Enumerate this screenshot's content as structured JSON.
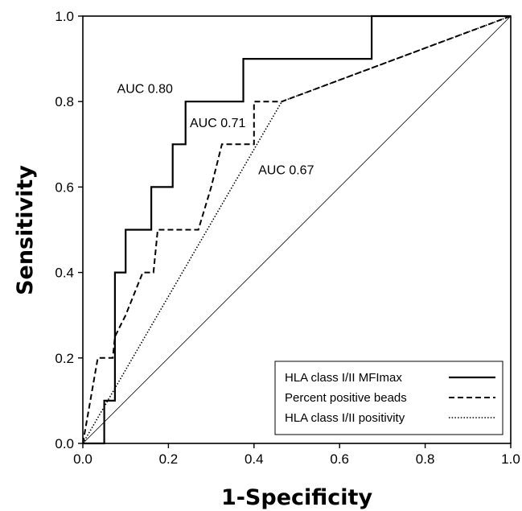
{
  "chart_data": {
    "type": "line",
    "xlabel": "1-Specificity",
    "ylabel": "Sensitivity",
    "xlim": [
      0,
      1
    ],
    "ylim": [
      0,
      1
    ],
    "grid": false,
    "legend_position": "bottom-right",
    "x_ticks": [
      "0.0",
      "0.2",
      "0.4",
      "0.6",
      "0.8",
      "1.0"
    ],
    "y_ticks": [
      "0.0",
      "0.2",
      "0.4",
      "0.6",
      "0.8",
      "1.0"
    ],
    "series": [
      {
        "name": "HLA class I/II MFImax",
        "style": "solid",
        "points": [
          [
            0,
            0
          ],
          [
            0.05,
            0
          ],
          [
            0.05,
            0.1
          ],
          [
            0.075,
            0.1
          ],
          [
            0.075,
            0.4
          ],
          [
            0.1,
            0.4
          ],
          [
            0.1,
            0.5
          ],
          [
            0.16,
            0.5
          ],
          [
            0.16,
            0.6
          ],
          [
            0.21,
            0.6
          ],
          [
            0.21,
            0.7
          ],
          [
            0.24,
            0.7
          ],
          [
            0.24,
            0.8
          ],
          [
            0.375,
            0.8
          ],
          [
            0.375,
            0.9
          ],
          [
            0.675,
            0.9
          ],
          [
            0.675,
            1.0
          ],
          [
            1.0,
            1.0
          ]
        ]
      },
      {
        "name": "Percent positive beads",
        "style": "dashed",
        "points": [
          [
            0,
            0
          ],
          [
            0.035,
            0.2
          ],
          [
            0.07,
            0.2
          ],
          [
            0.075,
            0.25
          ],
          [
            0.1,
            0.3
          ],
          [
            0.14,
            0.4
          ],
          [
            0.165,
            0.4
          ],
          [
            0.175,
            0.5
          ],
          [
            0.27,
            0.5
          ],
          [
            0.3,
            0.6
          ],
          [
            0.325,
            0.7
          ],
          [
            0.4,
            0.7
          ],
          [
            0.4,
            0.8
          ],
          [
            0.465,
            0.8
          ],
          [
            1.0,
            1.0
          ]
        ]
      },
      {
        "name": "HLA class I/II positivity",
        "style": "dotted",
        "points": [
          [
            0,
            0
          ],
          [
            0.465,
            0.8
          ],
          [
            1.0,
            1.0
          ]
        ]
      },
      {
        "name": "",
        "style": "reference",
        "points": [
          [
            0,
            0
          ],
          [
            1,
            1
          ]
        ]
      }
    ],
    "annotations": [
      {
        "text": "AUC 0.80",
        "x": 0.08,
        "y": 0.82
      },
      {
        "text": "AUC 0.71",
        "x": 0.25,
        "y": 0.74
      },
      {
        "text": "AUC 0.67",
        "x": 0.41,
        "y": 0.63
      }
    ]
  }
}
